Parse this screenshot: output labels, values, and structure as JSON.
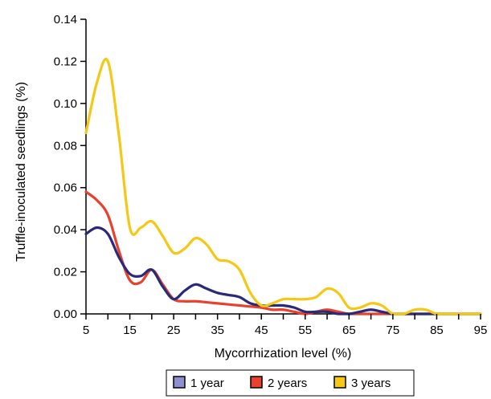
{
  "chart_data": {
    "type": "line",
    "title": "",
    "xlabel": "Mycorrhization level (%)",
    "ylabel": "Truffle-inoculated seedlings (%)",
    "xlim": [
      5,
      95
    ],
    "ylim": [
      0,
      0.14
    ],
    "x_ticks": [
      "5",
      "15",
      "25",
      "35",
      "45",
      "55",
      "65",
      "75",
      "85",
      "95"
    ],
    "y_ticks": [
      "0.00",
      "0.02",
      "0.04",
      "0.06",
      "0.08",
      "0.10",
      "0.12",
      "0.14"
    ],
    "grid": false,
    "legend_position": "bottom",
    "x": [
      5,
      7.5,
      10,
      12.5,
      15,
      17.5,
      20,
      22.5,
      25,
      27.5,
      30,
      32.5,
      35,
      37.5,
      40,
      42.5,
      45,
      47.5,
      50,
      52.5,
      55,
      57.5,
      60,
      62.5,
      65,
      67.5,
      70,
      72.5,
      75,
      77.5,
      80,
      82.5,
      85,
      87.5,
      90,
      92.5,
      95
    ],
    "series": [
      {
        "name": "1 year",
        "color": "#2b2a78",
        "values": [
          0.038,
          0.041,
          0.038,
          0.027,
          0.019,
          0.018,
          0.021,
          0.013,
          0.007,
          0.011,
          0.014,
          0.012,
          0.01,
          0.009,
          0.008,
          0.005,
          0.004,
          0.004,
          0.004,
          0.003,
          0.001,
          0.001,
          0.001,
          0.0,
          0.0,
          0.001,
          0.002,
          0.001,
          0.0,
          0.0,
          0.0,
          0.0,
          0.0,
          0.0,
          0.0,
          0.0,
          0.0
        ]
      },
      {
        "name": "2 years",
        "color": "#e8412e",
        "values": [
          0.058,
          0.054,
          0.047,
          0.03,
          0.016,
          0.015,
          0.021,
          0.014,
          0.007,
          0.006,
          0.006,
          0.0055,
          0.005,
          0.0045,
          0.004,
          0.0035,
          0.003,
          0.002,
          0.002,
          0.001,
          0.0,
          0.001,
          0.002,
          0.001,
          0.0,
          0.0,
          0.0,
          0.0,
          0.0,
          0.0,
          0.0,
          0.0,
          0.0,
          0.0,
          0.0,
          0.0,
          0.0
        ]
      },
      {
        "name": "3 years",
        "color": "#f5c815",
        "values": [
          0.086,
          0.11,
          0.12,
          0.085,
          0.041,
          0.041,
          0.044,
          0.037,
          0.029,
          0.031,
          0.036,
          0.033,
          0.026,
          0.025,
          0.021,
          0.01,
          0.004,
          0.005,
          0.007,
          0.007,
          0.007,
          0.008,
          0.012,
          0.01,
          0.003,
          0.003,
          0.005,
          0.004,
          0.0,
          0.0,
          0.002,
          0.002,
          0.0,
          0.0,
          0.0,
          0.0,
          0.0
        ]
      }
    ]
  }
}
